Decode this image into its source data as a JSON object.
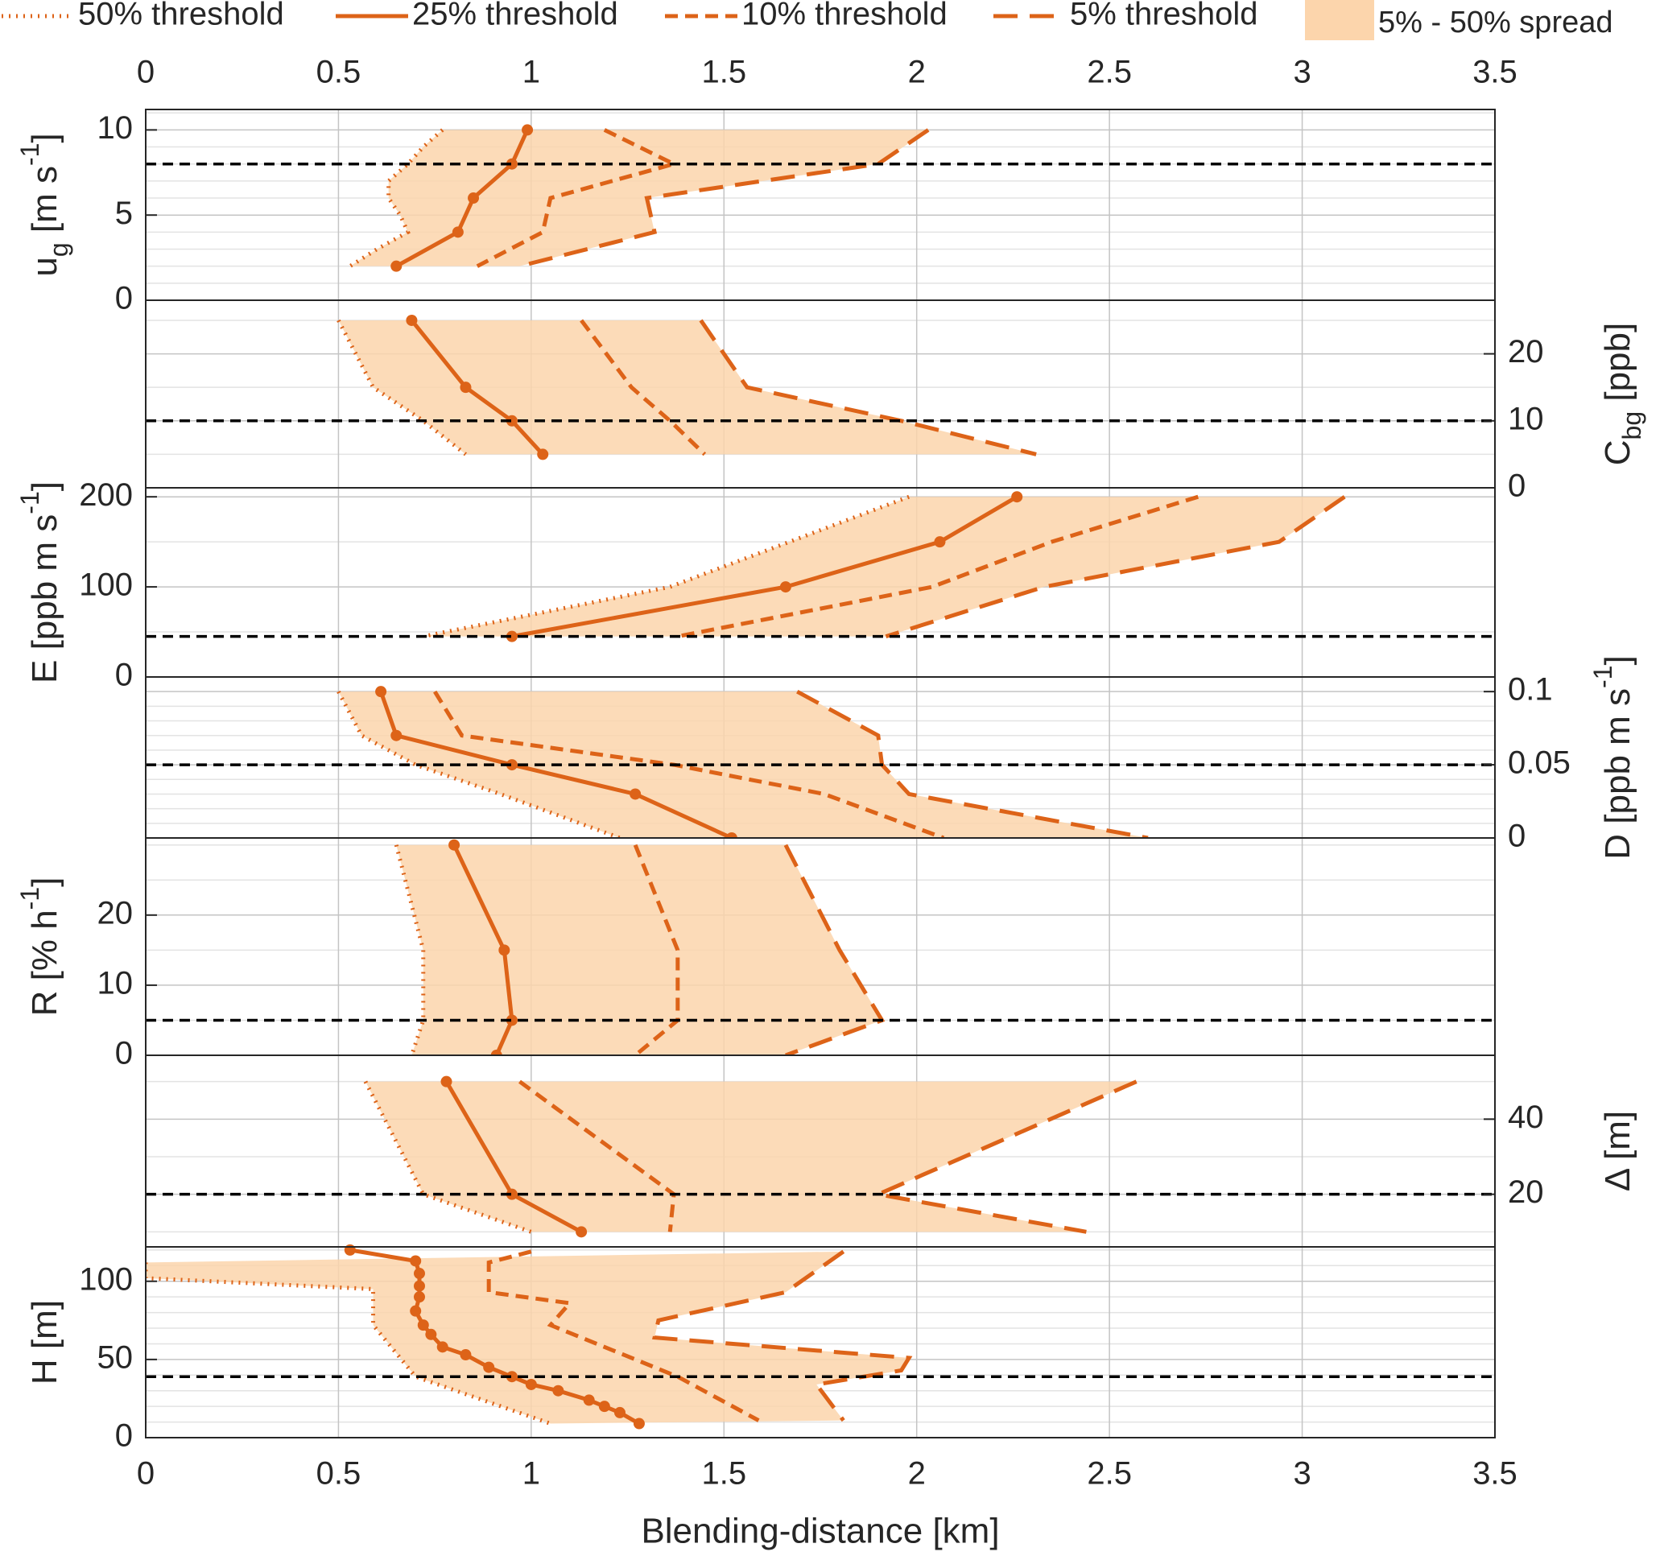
{
  "chart_data": [
    {
      "type": "line",
      "yaxis": "left",
      "ylabel": [
        {
          "text": "u"
        },
        {
          "text": "g",
          "sub": true
        },
        {
          "text": " [m s"
        },
        {
          "text": "-1",
          "sup": true
        },
        {
          "text": "]"
        }
      ],
      "xlim": [
        0,
        3.5
      ],
      "xticks": [
        0,
        0.5,
        1,
        1.5,
        2,
        2.5,
        3,
        3.5
      ],
      "ylim": [
        0,
        11.2
      ],
      "yticks": [
        0,
        5,
        10
      ],
      "grid": true,
      "minor_divisions": 5,
      "reference": 8,
      "spread": {
        "name": "5% - 50% spread",
        "color": "#fcd5ac"
      },
      "series": [
        {
          "name": "50% threshold",
          "color": "#dd6318",
          "style": "dotted",
          "markers": false,
          "y": [
            10,
            9,
            8,
            7,
            6,
            5,
            4,
            3,
            2
          ],
          "x": [
            0.77,
            0.72,
            0.68,
            0.63,
            0.63,
            0.66,
            0.68,
            0.6,
            0.53
          ]
        },
        {
          "name": "25% threshold",
          "color": "#dd6318",
          "style": "solid",
          "markers": true,
          "y": [
            10,
            8,
            6,
            4,
            2
          ],
          "x": [
            0.99,
            0.95,
            0.85,
            0.81,
            0.65
          ]
        },
        {
          "name": "10% threshold",
          "color": "#dd6318",
          "style": "dashed",
          "markers": false,
          "y": [
            10,
            8,
            6,
            4,
            2
          ],
          "x": [
            1.19,
            1.37,
            1.05,
            1.03,
            0.86
          ]
        },
        {
          "name": "5% threshold",
          "color": "#dd6318",
          "style": "longdash",
          "markers": false,
          "y": [
            10,
            8,
            6,
            4,
            2
          ],
          "x": [
            2.03,
            1.9,
            1.3,
            1.32,
            0.97
          ]
        }
      ]
    },
    {
      "type": "line",
      "yaxis": "right",
      "ylabel": [
        {
          "text": "C"
        },
        {
          "text": "bg",
          "sub": true
        },
        {
          "text": " [ppb]"
        }
      ],
      "xlim": [
        0,
        3.5
      ],
      "xticks": [
        0,
        0.5,
        1,
        1.5,
        2,
        2.5,
        3,
        3.5
      ],
      "ylim": [
        0,
        28
      ],
      "yticks": [
        0,
        10,
        20
      ],
      "grid": true,
      "minor_divisions": 2,
      "reference": 10,
      "spread": {
        "color": "#fcd5ac"
      },
      "series": [
        {
          "color": "#dd6318",
          "style": "dotted",
          "markers": false,
          "y": [
            25,
            15,
            10,
            5
          ],
          "x": [
            0.5,
            0.59,
            0.72,
            0.83
          ]
        },
        {
          "color": "#dd6318",
          "style": "solid",
          "markers": true,
          "y": [
            25,
            15,
            10,
            5
          ],
          "x": [
            0.69,
            0.83,
            0.95,
            1.03
          ]
        },
        {
          "color": "#dd6318",
          "style": "dashed",
          "markers": false,
          "y": [
            25,
            15,
            10,
            5
          ],
          "x": [
            1.13,
            1.26,
            1.36,
            1.45
          ]
        },
        {
          "color": "#dd6318",
          "style": "longdash",
          "markers": false,
          "y": [
            25,
            15,
            10,
            5
          ],
          "x": [
            1.44,
            1.56,
            1.96,
            2.31
          ]
        }
      ]
    },
    {
      "type": "line",
      "yaxis": "left",
      "ylabel": [
        {
          "text": "E [ppb m s"
        },
        {
          "text": "-1",
          "sup": true
        },
        {
          "text": "]"
        }
      ],
      "xlim": [
        0,
        3.5
      ],
      "xticks": [
        0,
        0.5,
        1,
        1.5,
        2,
        2.5,
        3,
        3.5
      ],
      "ylim": [
        0,
        210
      ],
      "yticks": [
        0,
        100,
        200
      ],
      "grid": true,
      "minor_divisions": 2,
      "reference": 45,
      "spread": {
        "color": "#fcd5ac"
      },
      "series": [
        {
          "color": "#dd6318",
          "style": "dotted",
          "markers": false,
          "y": [
            200,
            150,
            100,
            45
          ],
          "x": [
            1.98,
            1.67,
            1.36,
            0.72
          ]
        },
        {
          "color": "#dd6318",
          "style": "solid",
          "markers": true,
          "y": [
            200,
            150,
            100,
            45
          ],
          "x": [
            2.26,
            2.06,
            1.66,
            0.95
          ]
        },
        {
          "color": "#dd6318",
          "style": "dashed",
          "markers": false,
          "y": [
            200,
            150,
            100,
            45
          ],
          "x": [
            2.73,
            2.35,
            2.04,
            1.38
          ]
        },
        {
          "color": "#dd6318",
          "style": "longdash",
          "markers": false,
          "y": [
            200,
            150,
            100,
            45
          ],
          "x": [
            3.11,
            2.94,
            2.33,
            1.92
          ]
        }
      ]
    },
    {
      "type": "line",
      "yaxis": "right",
      "ylabel": [
        {
          "text": "D [ppb m s"
        },
        {
          "text": "-1",
          "sup": true
        },
        {
          "text": "]"
        }
      ],
      "xlim": [
        0,
        3.5
      ],
      "xticks": [
        0,
        0.5,
        1,
        1.5,
        2,
        2.5,
        3,
        3.5
      ],
      "ylim": [
        0,
        0.11
      ],
      "yticks": [
        0,
        0.05,
        0.1
      ],
      "grid": true,
      "minor_divisions": 5,
      "reference": 0.05,
      "spread": {
        "color": "#fcd5ac"
      },
      "series": [
        {
          "color": "#dd6318",
          "style": "dotted",
          "markers": false,
          "y": [
            0.1,
            0.07,
            0.05,
            0.03,
            0
          ],
          "x": [
            0.5,
            0.56,
            0.7,
            0.92,
            1.23
          ]
        },
        {
          "color": "#dd6318",
          "style": "solid",
          "markers": true,
          "y": [
            0.1,
            0.07,
            0.05,
            0.03,
            0
          ],
          "x": [
            0.61,
            0.65,
            0.95,
            1.27,
            1.52
          ]
        },
        {
          "color": "#dd6318",
          "style": "dashed",
          "markers": false,
          "y": [
            0.1,
            0.07,
            0.05,
            0.03,
            0
          ],
          "x": [
            0.75,
            0.82,
            1.37,
            1.76,
            2.07
          ]
        },
        {
          "color": "#dd6318",
          "style": "longdash",
          "markers": false,
          "y": [
            0.1,
            0.07,
            0.05,
            0.03,
            0
          ],
          "x": [
            1.69,
            1.9,
            1.91,
            1.98,
            2.6
          ]
        }
      ]
    },
    {
      "type": "line",
      "yaxis": "left",
      "ylabel": [
        {
          "text": "R [% h"
        },
        {
          "text": "-1",
          "sup": true
        },
        {
          "text": "]"
        }
      ],
      "xlim": [
        0,
        3.5
      ],
      "xticks": [
        0,
        0.5,
        1,
        1.5,
        2,
        2.5,
        3,
        3.5
      ],
      "ylim": [
        0,
        31
      ],
      "yticks": [
        0,
        10,
        20
      ],
      "grid": true,
      "minor_divisions": 2,
      "reference": 5,
      "spread": {
        "color": "#fcd5ac"
      },
      "series": [
        {
          "color": "#dd6318",
          "style": "dotted",
          "markers": false,
          "y": [
            30,
            15,
            5,
            0
          ],
          "x": [
            0.65,
            0.72,
            0.72,
            0.69
          ]
        },
        {
          "color": "#dd6318",
          "style": "solid",
          "markers": true,
          "y": [
            30,
            15,
            5,
            0
          ],
          "x": [
            0.8,
            0.93,
            0.95,
            0.91
          ]
        },
        {
          "color": "#dd6318",
          "style": "dashed",
          "markers": false,
          "y": [
            30,
            15,
            5,
            0
          ],
          "x": [
            1.27,
            1.38,
            1.38,
            1.27
          ]
        },
        {
          "color": "#dd6318",
          "style": "longdash",
          "markers": false,
          "y": [
            30,
            15,
            5,
            0
          ],
          "x": [
            1.66,
            1.8,
            1.91,
            1.66
          ]
        }
      ]
    },
    {
      "type": "line",
      "yaxis": "right",
      "ylabel": [
        {
          "text": "Δ [m]"
        }
      ],
      "xlim": [
        0,
        3.5
      ],
      "xticks": [
        0,
        0.5,
        1,
        1.5,
        2,
        2.5,
        3,
        3.5
      ],
      "ylim": [
        6,
        57
      ],
      "yticks": [
        20,
        40
      ],
      "grid": true,
      "minor_divisions": 2,
      "reference": 20,
      "spread": {
        "color": "#fcd5ac"
      },
      "series": [
        {
          "color": "#dd6318",
          "style": "dotted",
          "markers": false,
          "y": [
            50,
            20,
            10
          ],
          "x": [
            0.57,
            0.72,
            1.0
          ]
        },
        {
          "color": "#dd6318",
          "style": "solid",
          "markers": true,
          "y": [
            50,
            20,
            10
          ],
          "x": [
            0.78,
            0.95,
            1.13
          ]
        },
        {
          "color": "#dd6318",
          "style": "dashed",
          "markers": false,
          "y": [
            50,
            20,
            10
          ],
          "x": [
            0.97,
            1.37,
            1.36
          ]
        },
        {
          "color": "#dd6318",
          "style": "longdash",
          "markers": false,
          "y": [
            50,
            20,
            10
          ],
          "x": [
            2.57,
            1.9,
            2.44
          ]
        }
      ]
    },
    {
      "type": "line",
      "yaxis": "left",
      "ylabel": [
        {
          "text": "H [m]"
        }
      ],
      "xlabel": "Blending-distance [km]",
      "xlim": [
        0,
        3.5
      ],
      "xticks": [
        0,
        0.5,
        1,
        1.5,
        2,
        2.5,
        3,
        3.5
      ],
      "ylim": [
        0,
        122
      ],
      "yticks": [
        0,
        50,
        100
      ],
      "grid": true,
      "minor_divisions": 5,
      "reference": 39,
      "spread": {
        "color": "#fcd5ac"
      },
      "series": [
        {
          "color": "#dd6318",
          "style": "dotted",
          "markers": false,
          "y": [
            112,
            102,
            95,
            72,
            39,
            9
          ],
          "x": [
            0,
            0,
            0.59,
            0.59,
            0.7,
            1.05
          ]
        },
        {
          "color": "#dd6318",
          "style": "solid",
          "markers": true,
          "y": [
            120,
            113,
            105,
            97,
            90,
            81,
            72,
            66,
            58,
            53,
            45,
            39,
            34,
            30,
            24,
            20,
            16,
            9
          ],
          "x": [
            0.53,
            0.7,
            0.71,
            0.71,
            0.71,
            0.7,
            0.72,
            0.74,
            0.77,
            0.83,
            0.89,
            0.95,
            1.0,
            1.07,
            1.15,
            1.19,
            1.23,
            1.28
          ]
        },
        {
          "color": "#dd6318",
          "style": "dashed",
          "markers": false,
          "y": [
            119,
            112,
            93,
            86,
            72,
            39,
            11
          ],
          "x": [
            1.0,
            0.89,
            0.89,
            1.1,
            1.05,
            1.38,
            1.59
          ]
        },
        {
          "color": "#dd6318",
          "style": "longdash",
          "markers": false,
          "y": [
            119,
            93,
            75,
            64,
            51,
            43,
            34,
            11
          ],
          "x": [
            1.81,
            1.66,
            1.33,
            1.32,
            1.98,
            1.96,
            1.74,
            1.81
          ]
        }
      ]
    }
  ]
}
